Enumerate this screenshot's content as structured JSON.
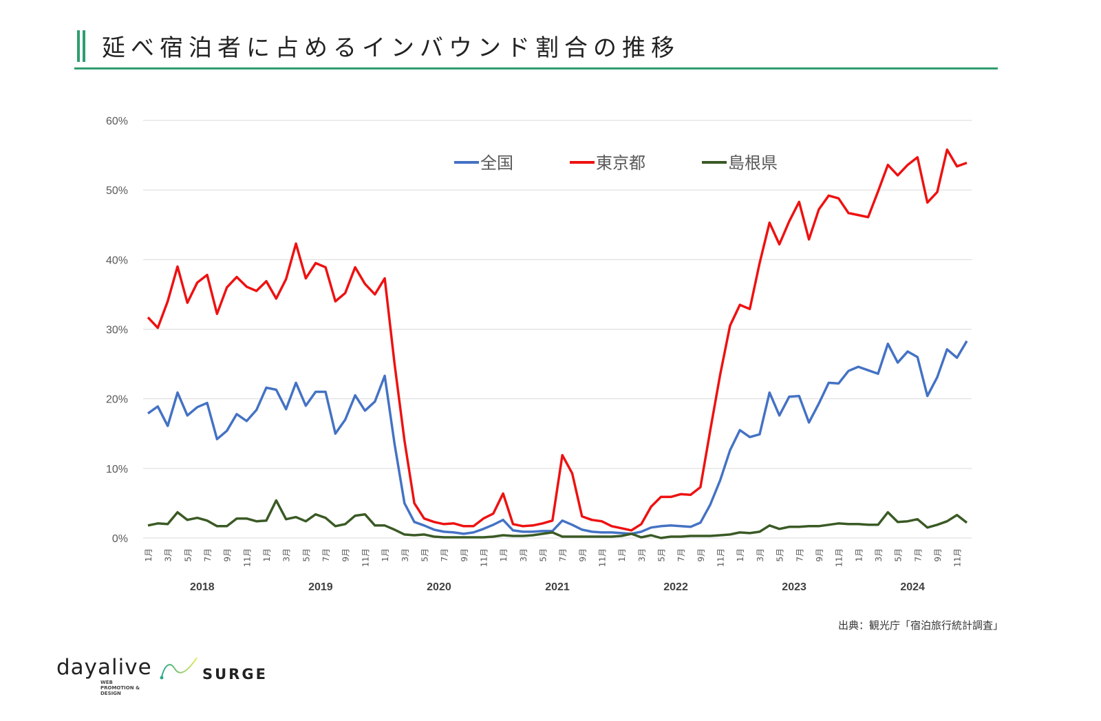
{
  "title": "延べ宿泊者に占めるインバウンド割合の推移",
  "source": "出典：観光庁「宿泊旅行統計調査」",
  "logos": {
    "dayalive": "dayalive",
    "dayalive_sub": "WEB PROMOTION & DESIGN",
    "surge": "SURGE"
  },
  "colors": {
    "accent": "#2e9e6e",
    "national": "#4472c4",
    "tokyo": "#ee1111",
    "shimane": "#3a5a25"
  },
  "chart_data": {
    "type": "line",
    "title": "延べ宿泊者に占めるインバウンド割合の推移",
    "xlabel": "",
    "ylabel": "",
    "ylim": [
      0,
      60
    ],
    "yticks": [
      "0%",
      "10%",
      "20%",
      "30%",
      "40%",
      "50%",
      "60%"
    ],
    "ytick_values": [
      0,
      10,
      20,
      30,
      40,
      50,
      60
    ],
    "years": [
      "2018",
      "2019",
      "2020",
      "2021",
      "2022",
      "2023",
      "2024"
    ],
    "month_tick_labels": [
      "1月",
      "3月",
      "5月",
      "7月",
      "9月",
      "11月"
    ],
    "grid": true,
    "legend_position": "top-center",
    "series": [
      {
        "name": "全国",
        "color": "#4472c4",
        "values": [
          17.9,
          18.9,
          16.1,
          20.9,
          17.6,
          18.8,
          19.4,
          14.2,
          15.4,
          17.8,
          16.8,
          18.4,
          21.6,
          21.3,
          18.5,
          22.3,
          19.0,
          21.0,
          21.0,
          15.0,
          17.0,
          20.5,
          18.3,
          19.6,
          23.3,
          13.5,
          5.0,
          2.3,
          1.8,
          1.2,
          0.9,
          0.8,
          0.6,
          0.8,
          1.3,
          1.9,
          2.6,
          1.1,
          0.9,
          0.9,
          1.0,
          1.0,
          2.5,
          1.9,
          1.2,
          0.9,
          0.8,
          0.8,
          0.7,
          0.6,
          0.9,
          1.5,
          1.7,
          1.8,
          1.7,
          1.6,
          2.2,
          4.8,
          8.3,
          12.6,
          15.5,
          14.5,
          14.9,
          20.9,
          17.6,
          20.3,
          20.4,
          16.6,
          19.3,
          22.3,
          22.2,
          24.0,
          24.6,
          24.1,
          23.6,
          27.9,
          25.2,
          26.8,
          26.0,
          20.4,
          23.1,
          27.1,
          25.9,
          28.3
        ]
      },
      {
        "name": "東京都",
        "color": "#ee1111",
        "values": [
          31.7,
          30.2,
          34.0,
          39.0,
          33.8,
          36.7,
          37.8,
          32.2,
          36.0,
          37.5,
          36.1,
          35.5,
          36.9,
          34.4,
          37.2,
          42.3,
          37.3,
          39.5,
          38.9,
          34.0,
          35.2,
          38.9,
          36.5,
          35.0,
          37.3,
          25.0,
          14.0,
          5.0,
          2.8,
          2.3,
          2.0,
          2.1,
          1.7,
          1.7,
          2.8,
          3.5,
          6.4,
          2.0,
          1.7,
          1.8,
          2.1,
          2.5,
          11.9,
          9.3,
          3.1,
          2.6,
          2.4,
          1.7,
          1.4,
          1.1,
          2.0,
          4.5,
          5.9,
          5.9,
          6.3,
          6.2,
          7.3,
          15.5,
          23.5,
          30.5,
          33.5,
          32.9,
          39.5,
          45.3,
          42.2,
          45.5,
          48.3,
          42.9,
          47.2,
          49.2,
          48.8,
          46.7,
          46.4,
          46.1,
          49.8,
          53.6,
          52.1,
          53.6,
          54.7,
          48.2,
          49.7,
          55.8,
          53.4,
          53.9
        ]
      },
      {
        "name": "島根県",
        "color": "#3a5a25",
        "values": [
          1.8,
          2.1,
          2.0,
          3.7,
          2.6,
          2.9,
          2.5,
          1.7,
          1.7,
          2.8,
          2.8,
          2.4,
          2.5,
          5.4,
          2.7,
          3.0,
          2.4,
          3.4,
          2.9,
          1.7,
          2.0,
          3.2,
          3.4,
          1.8,
          1.8,
          1.2,
          0.5,
          0.4,
          0.5,
          0.2,
          0.1,
          0.1,
          0.1,
          0.1,
          0.1,
          0.2,
          0.4,
          0.3,
          0.3,
          0.4,
          0.6,
          0.8,
          0.2,
          0.2,
          0.2,
          0.2,
          0.2,
          0.2,
          0.3,
          0.6,
          0.1,
          0.4,
          0.0,
          0.2,
          0.2,
          0.3,
          0.3,
          0.3,
          0.4,
          0.5,
          0.8,
          0.7,
          0.9,
          1.8,
          1.3,
          1.6,
          1.6,
          1.7,
          1.7,
          1.9,
          2.1,
          2.0,
          2.0,
          1.9,
          1.9,
          3.7,
          2.3,
          2.4,
          2.7,
          1.5,
          1.9,
          2.4,
          3.3,
          2.2
        ]
      }
    ]
  }
}
